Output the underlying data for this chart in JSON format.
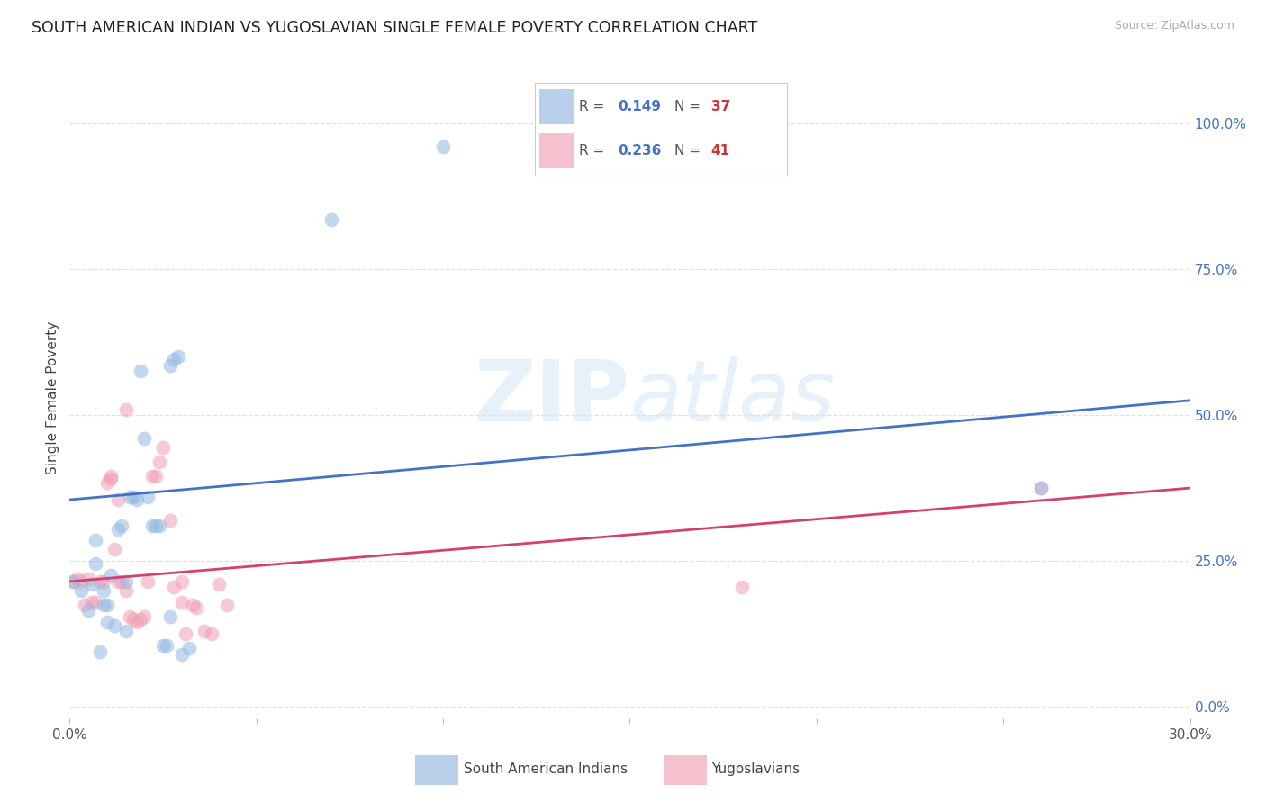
{
  "title": "SOUTH AMERICAN INDIAN VS YUGOSLAVIAN SINGLE FEMALE POVERTY CORRELATION CHART",
  "source": "Source: ZipAtlas.com",
  "ylabel": "Single Female Poverty",
  "ytick_labels": [
    "0.0%",
    "25.0%",
    "50.0%",
    "75.0%",
    "100.0%"
  ],
  "ytick_vals": [
    0.0,
    0.25,
    0.5,
    0.75,
    1.0
  ],
  "xlim": [
    0.0,
    0.3
  ],
  "ylim": [
    -0.02,
    1.08
  ],
  "blue_scatter": "#92b8e0",
  "pink_scatter": "#f0a0b4",
  "blue_line": "#4472c4",
  "pink_line": "#d44070",
  "right_tick_color": "#4472c4",
  "sa_indians": [
    [
      0.001,
      0.215
    ],
    [
      0.003,
      0.2
    ],
    [
      0.005,
      0.165
    ],
    [
      0.006,
      0.21
    ],
    [
      0.007,
      0.285
    ],
    [
      0.007,
      0.245
    ],
    [
      0.009,
      0.2
    ],
    [
      0.009,
      0.175
    ],
    [
      0.01,
      0.145
    ],
    [
      0.01,
      0.175
    ],
    [
      0.011,
      0.225
    ],
    [
      0.012,
      0.14
    ],
    [
      0.013,
      0.305
    ],
    [
      0.014,
      0.31
    ],
    [
      0.015,
      0.215
    ],
    [
      0.015,
      0.13
    ],
    [
      0.016,
      0.36
    ],
    [
      0.017,
      0.36
    ],
    [
      0.018,
      0.355
    ],
    [
      0.019,
      0.575
    ],
    [
      0.02,
      0.46
    ],
    [
      0.021,
      0.36
    ],
    [
      0.022,
      0.31
    ],
    [
      0.023,
      0.31
    ],
    [
      0.024,
      0.31
    ],
    [
      0.025,
      0.105
    ],
    [
      0.026,
      0.105
    ],
    [
      0.027,
      0.155
    ],
    [
      0.027,
      0.585
    ],
    [
      0.028,
      0.595
    ],
    [
      0.029,
      0.6
    ],
    [
      0.03,
      0.09
    ],
    [
      0.032,
      0.1
    ],
    [
      0.07,
      0.835
    ],
    [
      0.1,
      0.96
    ],
    [
      0.26,
      0.375
    ],
    [
      0.008,
      0.095
    ]
  ],
  "yugoslavians": [
    [
      0.001,
      0.215
    ],
    [
      0.002,
      0.22
    ],
    [
      0.003,
      0.215
    ],
    [
      0.004,
      0.175
    ],
    [
      0.005,
      0.22
    ],
    [
      0.006,
      0.18
    ],
    [
      0.007,
      0.18
    ],
    [
      0.008,
      0.215
    ],
    [
      0.009,
      0.215
    ],
    [
      0.01,
      0.385
    ],
    [
      0.011,
      0.395
    ],
    [
      0.011,
      0.39
    ],
    [
      0.012,
      0.27
    ],
    [
      0.013,
      0.215
    ],
    [
      0.013,
      0.355
    ],
    [
      0.014,
      0.215
    ],
    [
      0.015,
      0.2
    ],
    [
      0.016,
      0.155
    ],
    [
      0.017,
      0.15
    ],
    [
      0.018,
      0.145
    ],
    [
      0.019,
      0.15
    ],
    [
      0.02,
      0.155
    ],
    [
      0.021,
      0.215
    ],
    [
      0.022,
      0.395
    ],
    [
      0.023,
      0.395
    ],
    [
      0.024,
      0.42
    ],
    [
      0.025,
      0.445
    ],
    [
      0.027,
      0.32
    ],
    [
      0.028,
      0.205
    ],
    [
      0.03,
      0.215
    ],
    [
      0.03,
      0.18
    ],
    [
      0.031,
      0.125
    ],
    [
      0.033,
      0.175
    ],
    [
      0.034,
      0.17
    ],
    [
      0.036,
      0.13
    ],
    [
      0.038,
      0.125
    ],
    [
      0.04,
      0.21
    ],
    [
      0.042,
      0.175
    ],
    [
      0.18,
      0.205
    ],
    [
      0.26,
      0.375
    ],
    [
      0.015,
      0.51
    ]
  ],
  "watermark_zip": "ZIP",
  "watermark_atlas": "atlas",
  "bg_color": "#ffffff",
  "grid_color": "#e0e0e0"
}
